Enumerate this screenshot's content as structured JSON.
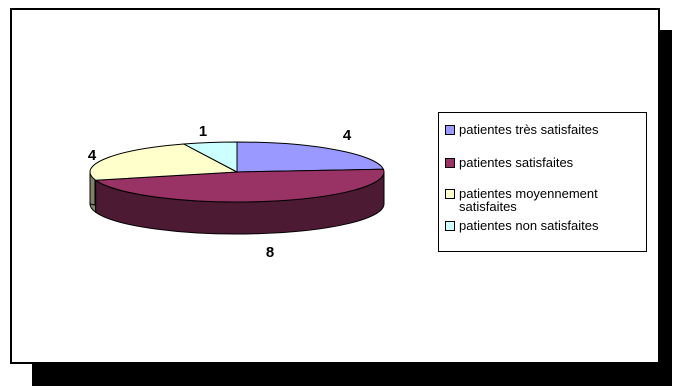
{
  "chart_data": {
    "type": "pie",
    "categories": [
      "patientes très satisfaites",
      "patientes satisfaites",
      "patientes moyennement satisfaites",
      "patientes non satisfaites"
    ],
    "values": [
      4,
      8,
      4,
      1
    ],
    "data_labels": [
      "4",
      "8",
      "4",
      "1"
    ],
    "colors": [
      "#9999FF",
      "#993366",
      "#FFFFCC",
      "#CCFFFF"
    ],
    "side_colors": [
      "#4D4D80",
      "#4D1A33",
      "#808066",
      "#668080"
    ],
    "style": "3d",
    "legend_position": "right"
  },
  "legend": {
    "items": [
      {
        "label": "patientes très satisfaites",
        "color": "#9999FF"
      },
      {
        "label": "patientes satisfaites",
        "color": "#993366"
      },
      {
        "label": "patientes moyennement satisfaites",
        "color": "#FFFFCC"
      },
      {
        "label": "patientes non satisfaites",
        "color": "#CCFFFF"
      }
    ]
  }
}
